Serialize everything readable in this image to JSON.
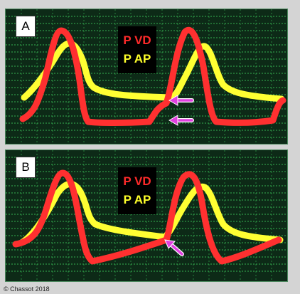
{
  "panels": [
    {
      "label": "A",
      "legend": {
        "pressure_vd": "P VD",
        "pressure_ap": "P AP"
      },
      "colors": {
        "pressure_vd": "#ff3030",
        "pressure_ap": "#ffff33",
        "arrow": "#e040e0",
        "grid": "#3dcc5c"
      },
      "arrows": 2
    },
    {
      "label": "B",
      "legend": {
        "pressure_vd": "P VD",
        "pressure_ap": "P AP"
      },
      "colors": {
        "pressure_vd": "#ff3030",
        "pressure_ap": "#ffff33",
        "arrow": "#e040e0",
        "grid": "#3dcc5c"
      },
      "arrows": 1
    }
  ],
  "copyright": "© Chassot 2018"
}
